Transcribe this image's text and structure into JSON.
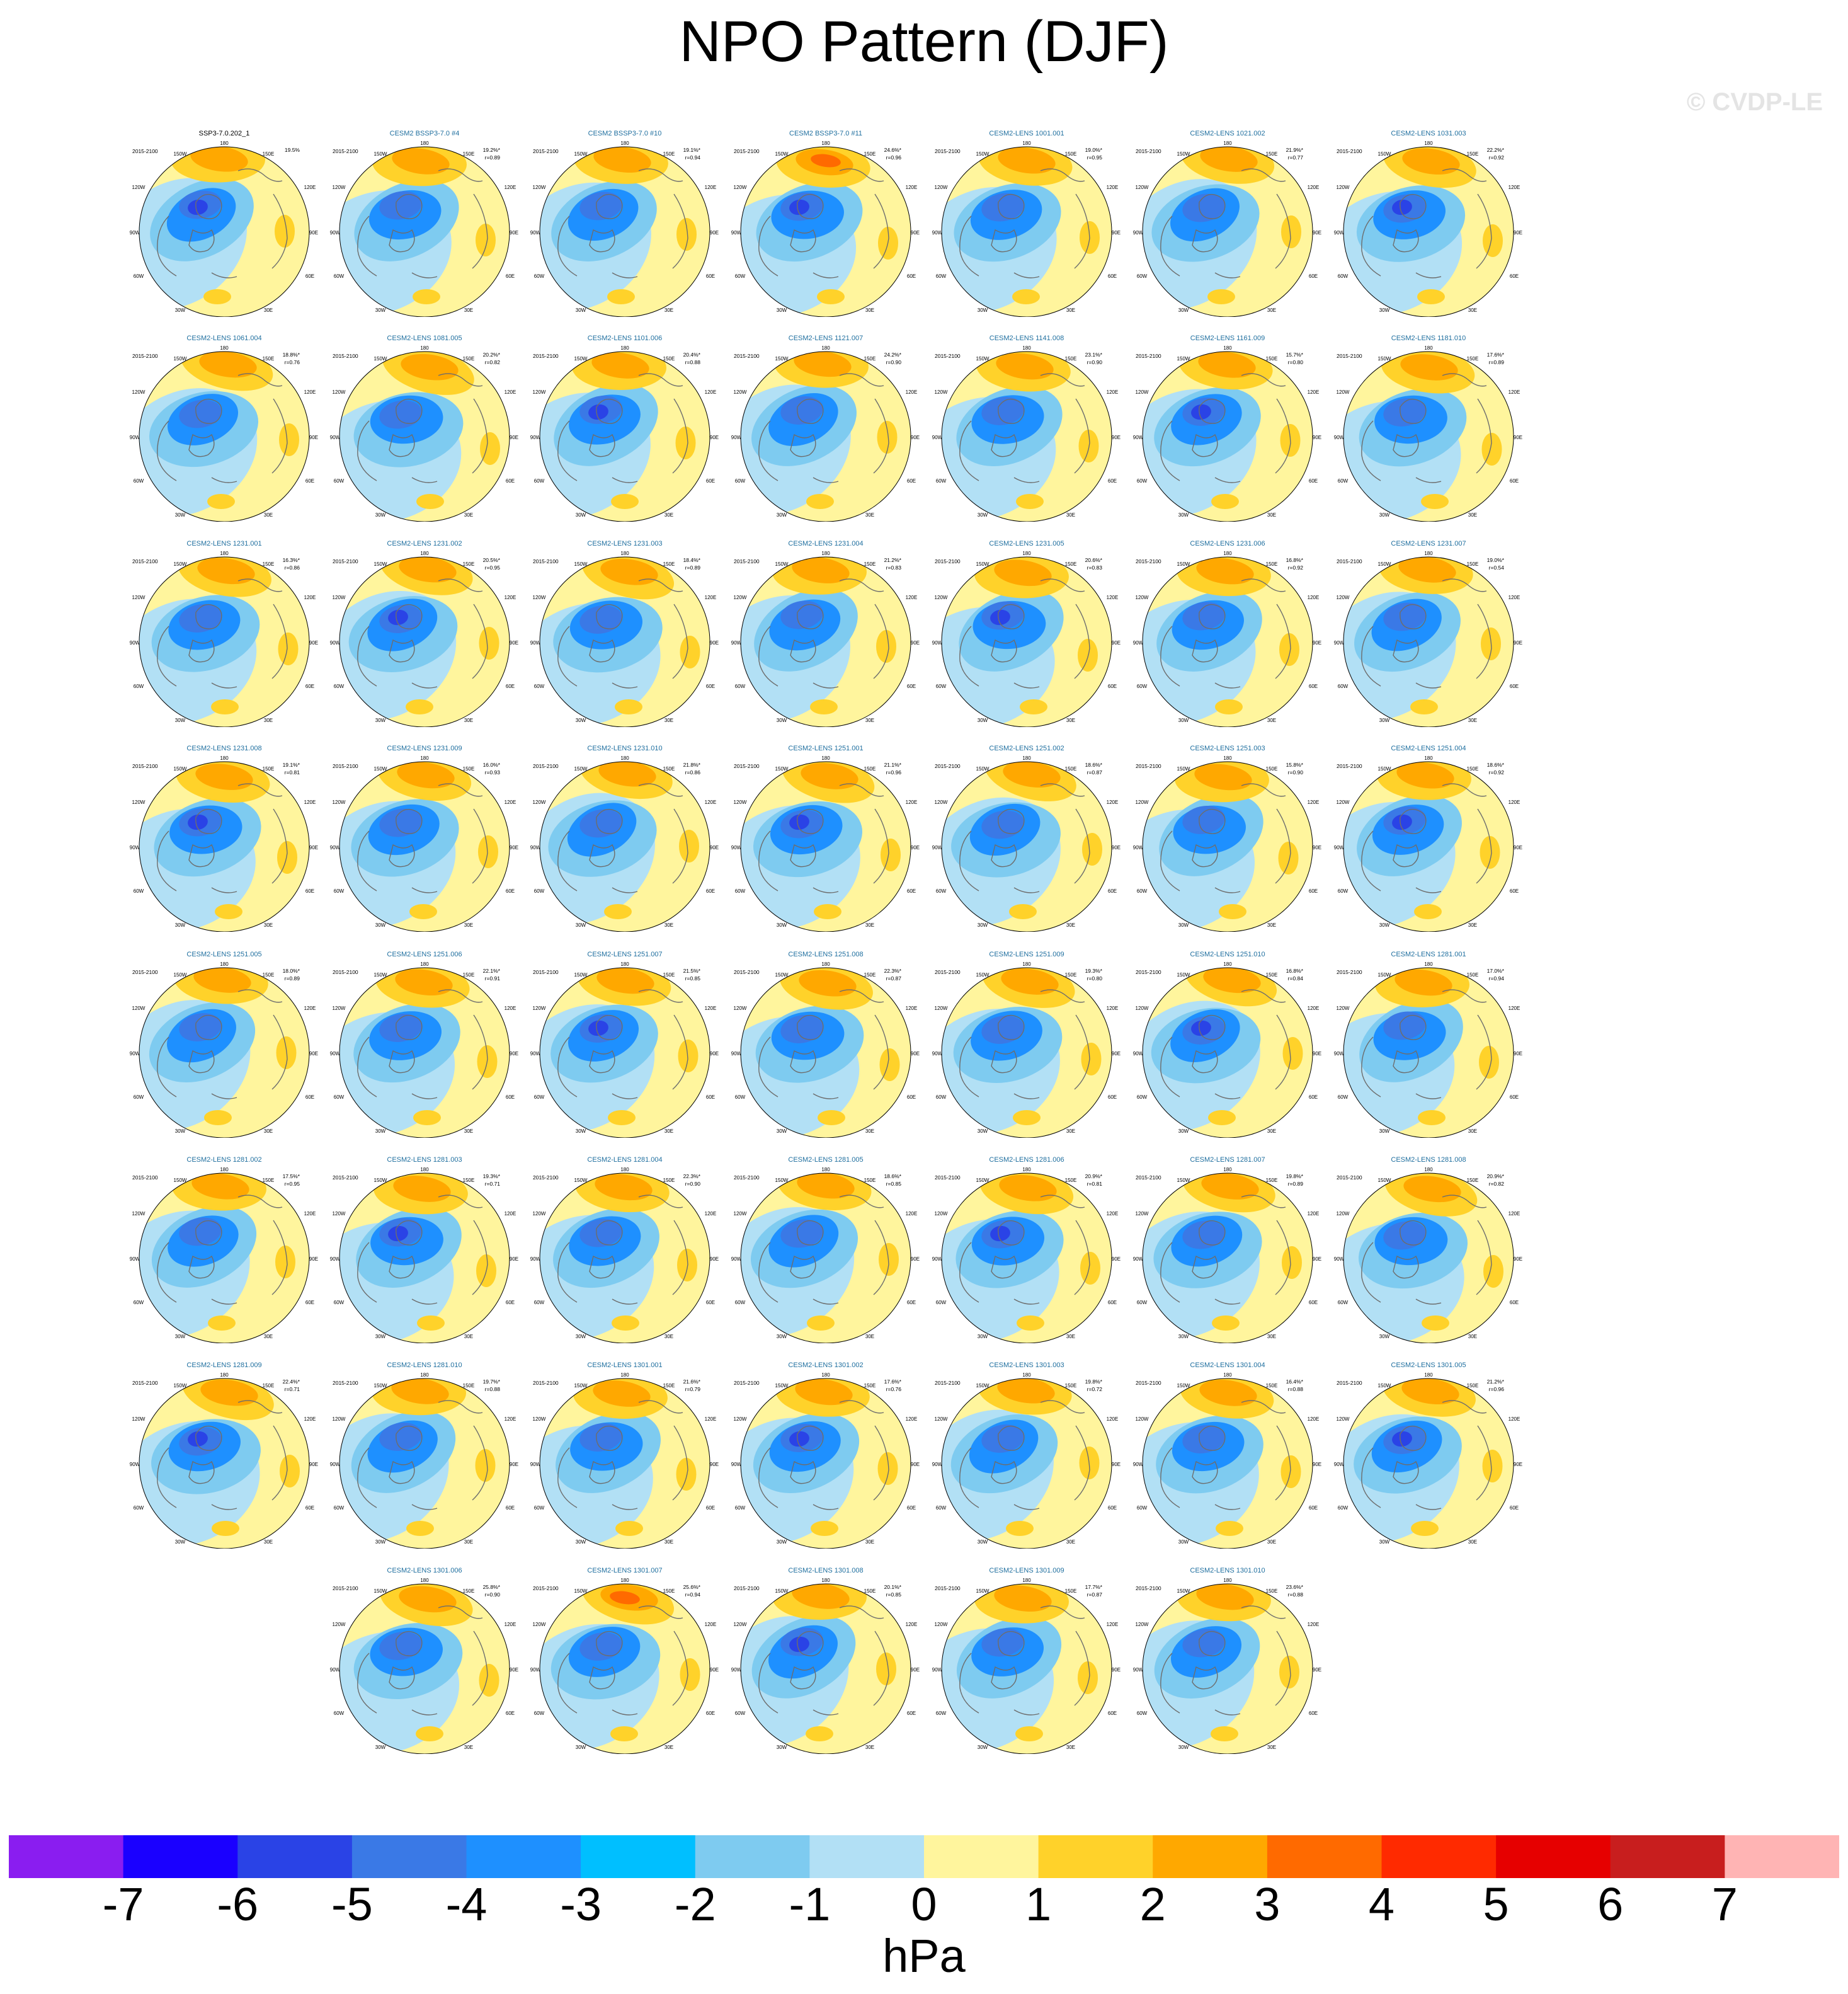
{
  "title": "NPO Pattern (DJF)",
  "watermark": "© CVDP-LE",
  "chart_data": {
    "type": "heatmap",
    "title": "NPO Pattern (DJF)",
    "projection": "north polar stereographic",
    "grid_columns": 7,
    "period": "2015-2100",
    "map_labels": {
      "top": "180",
      "top_left": "150W",
      "top_right": "150E",
      "upper_left": "120W",
      "upper_right": "120E",
      "left": "90W",
      "right": "90E",
      "lower_left": "60W",
      "lower_right": "60E",
      "bottom_left": "30W",
      "bottom_right": "30E",
      "bottom": "0"
    },
    "panels": [
      {
        "name": "SSP3-7.0.202_1",
        "pct": "19.5%",
        "r": ""
      },
      {
        "name": "CESM2 BSSP3-7.0 #4",
        "pct": "19.2%*",
        "r": "r=0.89"
      },
      {
        "name": "CESM2 BSSP3-7.0 #10",
        "pct": "19.1%*",
        "r": "r=0.94"
      },
      {
        "name": "CESM2 BSSP3-7.0 #11",
        "pct": "24.6%*",
        "r": "r=0.96"
      },
      {
        "name": "CESM2-LENS 1001.001",
        "pct": "19.0%*",
        "r": "r=0.95"
      },
      {
        "name": "CESM2-LENS 1021.002",
        "pct": "21.9%*",
        "r": "r=0.77"
      },
      {
        "name": "CESM2-LENS 1031.003",
        "pct": "22.2%*",
        "r": "r=0.92"
      },
      {
        "name": "CESM2-LENS 1061.004",
        "pct": "18.8%*",
        "r": "r=0.76"
      },
      {
        "name": "CESM2-LENS 1081.005",
        "pct": "20.2%*",
        "r": "r=0.82"
      },
      {
        "name": "CESM2-LENS 1101.006",
        "pct": "20.4%*",
        "r": "r=0.88"
      },
      {
        "name": "CESM2-LENS 1121.007",
        "pct": "24.2%*",
        "r": "r=0.90"
      },
      {
        "name": "CESM2-LENS 1141.008",
        "pct": "23.1%*",
        "r": "r=0.90"
      },
      {
        "name": "CESM2-LENS 1161.009",
        "pct": "15.7%*",
        "r": "r=0.80"
      },
      {
        "name": "CESM2-LENS 1181.010",
        "pct": "17.6%*",
        "r": "r=0.89"
      },
      {
        "name": "CESM2-LENS 1231.001",
        "pct": "16.3%*",
        "r": "r=0.86"
      },
      {
        "name": "CESM2-LENS 1231.002",
        "pct": "20.5%*",
        "r": "r=0.95"
      },
      {
        "name": "CESM2-LENS 1231.003",
        "pct": "18.4%*",
        "r": "r=0.89"
      },
      {
        "name": "CESM2-LENS 1231.004",
        "pct": "21.2%*",
        "r": "r=0.83"
      },
      {
        "name": "CESM2-LENS 1231.005",
        "pct": "20.6%*",
        "r": "r=0.83"
      },
      {
        "name": "CESM2-LENS 1231.006",
        "pct": "16.8%*",
        "r": "r=0.92"
      },
      {
        "name": "CESM2-LENS 1231.007",
        "pct": "19.0%*",
        "r": "r=0.54"
      },
      {
        "name": "CESM2-LENS 1231.008",
        "pct": "19.1%*",
        "r": "r=0.81"
      },
      {
        "name": "CESM2-LENS 1231.009",
        "pct": "16.0%*",
        "r": "r=0.93"
      },
      {
        "name": "CESM2-LENS 1231.010",
        "pct": "21.8%*",
        "r": "r=0.86"
      },
      {
        "name": "CESM2-LENS 1251.001",
        "pct": "21.1%*",
        "r": "r=0.96"
      },
      {
        "name": "CESM2-LENS 1251.002",
        "pct": "18.6%*",
        "r": "r=0.87"
      },
      {
        "name": "CESM2-LENS 1251.003",
        "pct": "15.8%*",
        "r": "r=0.90"
      },
      {
        "name": "CESM2-LENS 1251.004",
        "pct": "18.6%*",
        "r": "r=0.92"
      },
      {
        "name": "CESM2-LENS 1251.005",
        "pct": "18.0%*",
        "r": "r=0.89"
      },
      {
        "name": "CESM2-LENS 1251.006",
        "pct": "22.1%*",
        "r": "r=0.91"
      },
      {
        "name": "CESM2-LENS 1251.007",
        "pct": "21.5%*",
        "r": "r=0.85"
      },
      {
        "name": "CESM2-LENS 1251.008",
        "pct": "22.3%*",
        "r": "r=0.87"
      },
      {
        "name": "CESM2-LENS 1251.009",
        "pct": "19.3%*",
        "r": "r=0.80"
      },
      {
        "name": "CESM2-LENS 1251.010",
        "pct": "16.8%*",
        "r": "r=0.84"
      },
      {
        "name": "CESM2-LENS 1281.001",
        "pct": "17.0%*",
        "r": "r=0.94"
      },
      {
        "name": "CESM2-LENS 1281.002",
        "pct": "17.5%*",
        "r": "r=0.95"
      },
      {
        "name": "CESM2-LENS 1281.003",
        "pct": "19.3%*",
        "r": "r=0.71"
      },
      {
        "name": "CESM2-LENS 1281.004",
        "pct": "22.3%*",
        "r": "r=0.90"
      },
      {
        "name": "CESM2-LENS 1281.005",
        "pct": "18.6%*",
        "r": "r=0.85"
      },
      {
        "name": "CESM2-LENS 1281.006",
        "pct": "20.9%*",
        "r": "r=0.81"
      },
      {
        "name": "CESM2-LENS 1281.007",
        "pct": "19.8%*",
        "r": "r=0.89"
      },
      {
        "name": "CESM2-LENS 1281.008",
        "pct": "20.9%*",
        "r": "r=0.82"
      },
      {
        "name": "CESM2-LENS 1281.009",
        "pct": "22.4%*",
        "r": "r=0.71"
      },
      {
        "name": "CESM2-LENS 1281.010",
        "pct": "19.7%*",
        "r": "r=0.88"
      },
      {
        "name": "CESM2-LENS 1301.001",
        "pct": "21.6%*",
        "r": "r=0.79"
      },
      {
        "name": "CESM2-LENS 1301.002",
        "pct": "17.6%*",
        "r": "r=0.76"
      },
      {
        "name": "CESM2-LENS 1301.003",
        "pct": "19.8%*",
        "r": "r=0.72"
      },
      {
        "name": "CESM2-LENS 1301.004",
        "pct": "16.4%*",
        "r": "r=0.88"
      },
      {
        "name": "CESM2-LENS 1301.005",
        "pct": "21.2%*",
        "r": "r=0.96"
      },
      {
        "name": "CESM2-LENS 1301.006",
        "pct": "25.8%*",
        "r": "r=0.90"
      },
      {
        "name": "CESM2-LENS 1301.007",
        "pct": "25.6%*",
        "r": "r=0.94"
      },
      {
        "name": "CESM2-LENS 1301.008",
        "pct": "20.1%*",
        "r": "r=0.85"
      },
      {
        "name": "CESM2-LENS 1301.009",
        "pct": "17.7%*",
        "r": "r=0.87"
      },
      {
        "name": "CESM2-LENS 1301.010",
        "pct": "23.6%*",
        "r": "r=0.88"
      }
    ],
    "colorbar": {
      "units": "hPa",
      "ticks": [
        "-7",
        "-6",
        "-5",
        "-4",
        "-3",
        "-2",
        "-1",
        "0",
        "1",
        "2",
        "3",
        "4",
        "5",
        "6",
        "7"
      ],
      "colors": [
        "#8a1df0",
        "#1a00ff",
        "#2a43e6",
        "#3a79e6",
        "#1e90ff",
        "#00bfff",
        "#7ecbf0",
        "#b2e0f5",
        "#fff59d",
        "#ffd22a",
        "#ffa800",
        "#ff6a00",
        "#ff2a00",
        "#e60000",
        "#c81e1e",
        "#ffb4b4"
      ]
    }
  }
}
